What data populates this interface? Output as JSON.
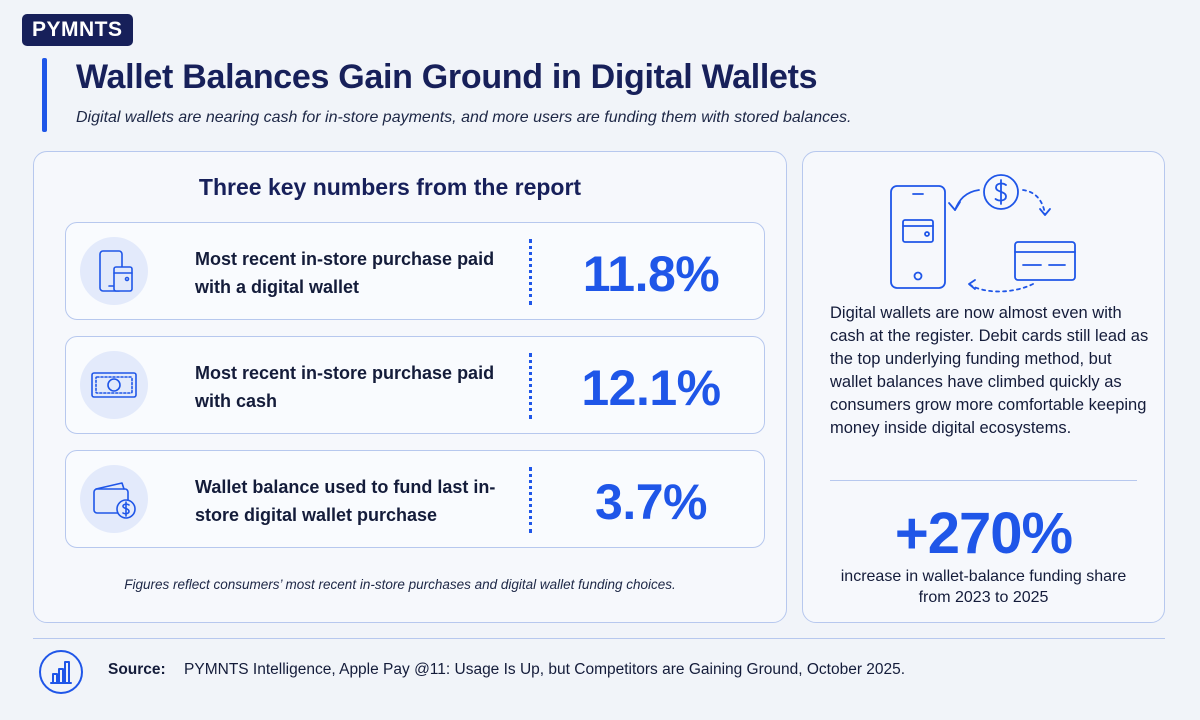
{
  "brand": {
    "logo_text": "PYMNTS"
  },
  "header": {
    "title": "Wallet Balances Gain Ground in Digital Wallets",
    "subtitle": "Digital wallets are nearing cash for in-store payments, and more users are funding them with stored balances."
  },
  "key_numbers": {
    "heading": "Three key numbers from the report",
    "items": [
      {
        "label": "Most recent in-store purchase paid with a digital wallet",
        "value": "11.8%",
        "icon": "phone-wallet-icon"
      },
      {
        "label": "Most recent in-store purchase paid with cash",
        "value": "12.1%",
        "icon": "cash-bill-icon"
      },
      {
        "label": "Wallet balance used to fund last in-store digital wallet purchase",
        "value": "3.7%",
        "icon": "wallet-dollar-icon"
      }
    ],
    "footnote": "Figures reflect consumers’ most recent in-store purchases and digital wallet funding choices."
  },
  "insight": {
    "body": "Digital wallets are now almost even with cash at the register. Debit cards still lead as the top underlying funding method, but wallet balances have climbed quickly as consumers grow more comfortable keeping money inside digital ecosystems.",
    "big_value": "+270%",
    "big_value_label": "increase in wallet-balance funding share from 2023 to 2025"
  },
  "footer": {
    "source_label": "Source:",
    "source_text": "PYMNTS Intelligence, Apple Pay @11: Usage Is Up, but Competitors are Gaining Ground, October 2025."
  },
  "colors": {
    "accent": "#1f56e8",
    "navy": "#17205a",
    "border": "#b7c8ee",
    "background": "#f1f4f9"
  }
}
